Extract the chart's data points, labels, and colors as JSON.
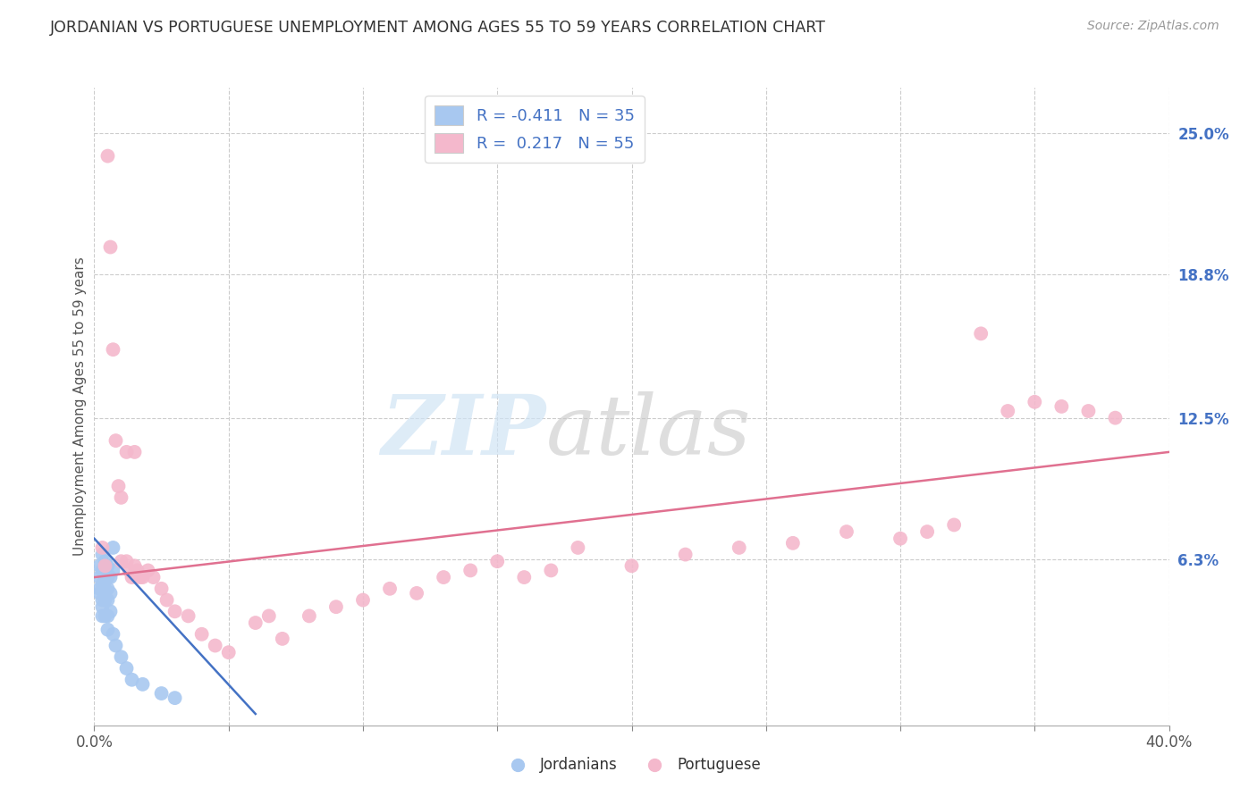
{
  "title": "JORDANIAN VS PORTUGUESE UNEMPLOYMENT AMONG AGES 55 TO 59 YEARS CORRELATION CHART",
  "source": "Source: ZipAtlas.com",
  "ylabel": "Unemployment Among Ages 55 to 59 years",
  "xlim": [
    0.0,
    0.4
  ],
  "ylim": [
    -0.01,
    0.27
  ],
  "plot_ylim": [
    0.0,
    0.27
  ],
  "xticks": [
    0.0,
    0.05,
    0.1,
    0.15,
    0.2,
    0.25,
    0.3,
    0.35,
    0.4
  ],
  "yticks_right": [
    0.063,
    0.125,
    0.188,
    0.25
  ],
  "ytick_labels_right": [
    "6.3%",
    "12.5%",
    "18.8%",
    "25.0%"
  ],
  "background_color": "#ffffff",
  "grid_color": "#cccccc",
  "jordan_color": "#a8c8f0",
  "portugal_color": "#f4b8cc",
  "jordan_line_color": "#4472c4",
  "portugal_line_color": "#e07090",
  "jordan_scatter": [
    [
      0.002,
      0.06
    ],
    [
      0.002,
      0.055
    ],
    [
      0.002,
      0.05
    ],
    [
      0.002,
      0.048
    ],
    [
      0.003,
      0.065
    ],
    [
      0.003,
      0.058
    ],
    [
      0.003,
      0.052
    ],
    [
      0.003,
      0.045
    ],
    [
      0.003,
      0.042
    ],
    [
      0.003,
      0.038
    ],
    [
      0.004,
      0.062
    ],
    [
      0.004,
      0.058
    ],
    [
      0.004,
      0.055
    ],
    [
      0.004,
      0.05
    ],
    [
      0.004,
      0.045
    ],
    [
      0.004,
      0.038
    ],
    [
      0.005,
      0.06
    ],
    [
      0.005,
      0.055
    ],
    [
      0.005,
      0.05
    ],
    [
      0.005,
      0.045
    ],
    [
      0.005,
      0.038
    ],
    [
      0.005,
      0.032
    ],
    [
      0.006,
      0.055
    ],
    [
      0.006,
      0.048
    ],
    [
      0.006,
      0.04
    ],
    [
      0.007,
      0.068
    ],
    [
      0.007,
      0.058
    ],
    [
      0.007,
      0.03
    ],
    [
      0.008,
      0.025
    ],
    [
      0.01,
      0.02
    ],
    [
      0.012,
      0.015
    ],
    [
      0.014,
      0.01
    ],
    [
      0.018,
      0.008
    ],
    [
      0.025,
      0.004
    ],
    [
      0.03,
      0.002
    ]
  ],
  "portugal_scatter": [
    [
      0.003,
      0.068
    ],
    [
      0.004,
      0.06
    ],
    [
      0.005,
      0.24
    ],
    [
      0.006,
      0.2
    ],
    [
      0.007,
      0.155
    ],
    [
      0.008,
      0.115
    ],
    [
      0.009,
      0.095
    ],
    [
      0.01,
      0.09
    ],
    [
      0.01,
      0.062
    ],
    [
      0.012,
      0.11
    ],
    [
      0.012,
      0.062
    ],
    [
      0.013,
      0.058
    ],
    [
      0.014,
      0.055
    ],
    [
      0.015,
      0.11
    ],
    [
      0.015,
      0.06
    ],
    [
      0.016,
      0.058
    ],
    [
      0.017,
      0.055
    ],
    [
      0.018,
      0.055
    ],
    [
      0.02,
      0.058
    ],
    [
      0.022,
      0.055
    ],
    [
      0.025,
      0.05
    ],
    [
      0.027,
      0.045
    ],
    [
      0.03,
      0.04
    ],
    [
      0.035,
      0.038
    ],
    [
      0.04,
      0.03
    ],
    [
      0.045,
      0.025
    ],
    [
      0.05,
      0.022
    ],
    [
      0.06,
      0.035
    ],
    [
      0.065,
      0.038
    ],
    [
      0.07,
      0.028
    ],
    [
      0.08,
      0.038
    ],
    [
      0.09,
      0.042
    ],
    [
      0.1,
      0.045
    ],
    [
      0.11,
      0.05
    ],
    [
      0.12,
      0.048
    ],
    [
      0.13,
      0.055
    ],
    [
      0.14,
      0.058
    ],
    [
      0.15,
      0.062
    ],
    [
      0.16,
      0.055
    ],
    [
      0.17,
      0.058
    ],
    [
      0.18,
      0.068
    ],
    [
      0.2,
      0.06
    ],
    [
      0.22,
      0.065
    ],
    [
      0.24,
      0.068
    ],
    [
      0.26,
      0.07
    ],
    [
      0.28,
      0.075
    ],
    [
      0.3,
      0.072
    ],
    [
      0.31,
      0.075
    ],
    [
      0.32,
      0.078
    ],
    [
      0.33,
      0.162
    ],
    [
      0.34,
      0.128
    ],
    [
      0.35,
      0.132
    ],
    [
      0.36,
      0.13
    ],
    [
      0.37,
      0.128
    ],
    [
      0.38,
      0.125
    ]
  ],
  "jordan_trendline_x": [
    0.0,
    0.06
  ],
  "jordan_trendline_y": [
    0.072,
    -0.005
  ],
  "portugal_trendline_x": [
    0.0,
    0.4
  ],
  "portugal_trendline_y": [
    0.055,
    0.11
  ]
}
